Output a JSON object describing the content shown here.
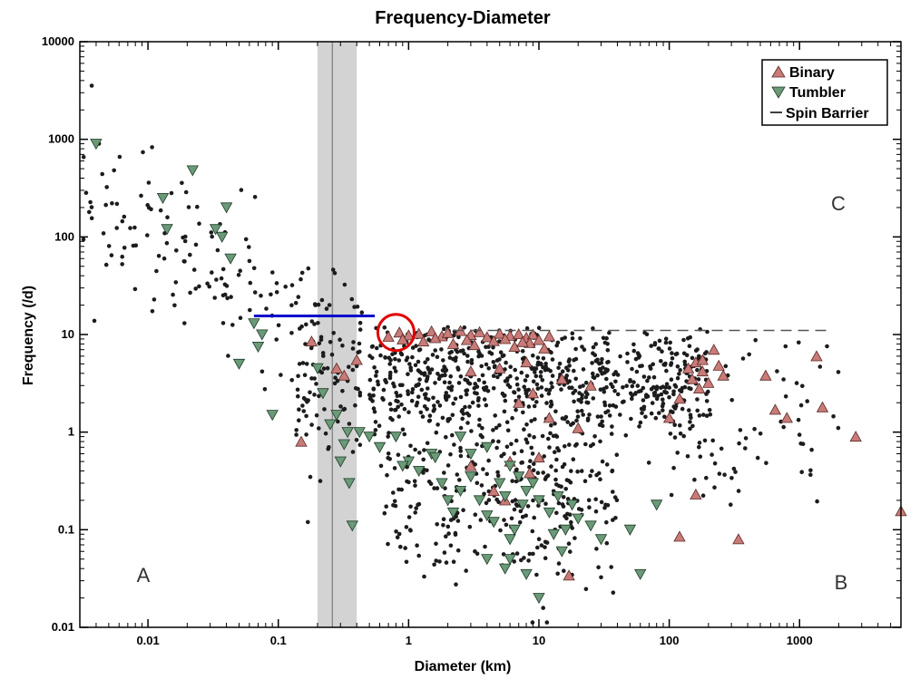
{
  "chart_data": {
    "type": "scatter",
    "title": "Frequency-Diameter",
    "xlabel": "Diameter (km)",
    "ylabel": "Frequency (/d)",
    "xscale": "log",
    "yscale": "log",
    "xlim": [
      0.003,
      6000
    ],
    "ylim": [
      0.01,
      10000
    ],
    "x_ticks": [
      0.01,
      0.1,
      1,
      10,
      100,
      1000
    ],
    "x_tick_labels": [
      "0.01",
      "0.1",
      "1",
      "10",
      "100",
      "1000"
    ],
    "y_ticks": [
      0.01,
      0.1,
      1,
      10,
      100,
      1000,
      10000
    ],
    "y_tick_labels": [
      "0.01",
      "0.1",
      "1",
      "10",
      "100",
      "1000",
      "10000"
    ],
    "legend": {
      "position": "top-right",
      "entries": [
        {
          "label": "Binary",
          "marker": "triangle-up",
          "color": "#c97b78"
        },
        {
          "label": "Tumbler",
          "marker": "triangle-down",
          "color": "#6a9a78"
        },
        {
          "label": "Spin Barrier",
          "marker": "line",
          "color": "#000000"
        }
      ]
    },
    "region_labels": [
      "A",
      "B",
      "C"
    ],
    "spin_barrier_line": {
      "x": [
        2.2,
        1600
      ],
      "y": [
        11,
        11
      ],
      "style": "dashed"
    },
    "highlight_band": {
      "x_range": [
        0.2,
        0.4
      ],
      "center": 0.26
    },
    "blue_line": {
      "x": [
        0.065,
        0.55
      ],
      "y": [
        15.5,
        15.5
      ],
      "color": "#0000cc"
    },
    "red_circle": {
      "x": 0.8,
      "y": 10.5,
      "color": "#e00000"
    },
    "series": [
      {
        "name": "Binary",
        "marker": "triangle-up",
        "color": "#c97b78",
        "points": [
          [
            0.7,
            9.5
          ],
          [
            0.85,
            10.5
          ],
          [
            1.0,
            9.8
          ],
          [
            1.2,
            10.2
          ],
          [
            1.5,
            10.8
          ],
          [
            1.8,
            9.6
          ],
          [
            2.0,
            10.4
          ],
          [
            2.5,
            10.9
          ],
          [
            3.0,
            9.9
          ],
          [
            3.5,
            10.6
          ],
          [
            4.0,
            9.4
          ],
          [
            5.0,
            10.2
          ],
          [
            6.0,
            9.7
          ],
          [
            7.0,
            10.1
          ],
          [
            8.0,
            9.3
          ],
          [
            9.0,
            10.0
          ],
          [
            10.0,
            8.8
          ],
          [
            12.0,
            9.6
          ],
          [
            1.3,
            8.5
          ],
          [
            2.2,
            8.0
          ],
          [
            3.2,
            7.8
          ],
          [
            4.5,
            8.6
          ],
          [
            6.5,
            7.5
          ],
          [
            8.5,
            8.2
          ],
          [
            0.9,
            8.9
          ],
          [
            1.6,
            9.2
          ],
          [
            2.8,
            8.8
          ],
          [
            5.5,
            9.0
          ],
          [
            7.5,
            8.4
          ],
          [
            11.0,
            7.2
          ],
          [
            0.4,
            5.5
          ],
          [
            0.28,
            4.5
          ],
          [
            0.32,
            3.8
          ],
          [
            0.18,
            8.5
          ],
          [
            5.0,
            4.5
          ],
          [
            3.0,
            4.2
          ],
          [
            8.0,
            5.2
          ],
          [
            15.0,
            3.5
          ],
          [
            25.0,
            3.0
          ],
          [
            9.0,
            2.5
          ],
          [
            7.0,
            2.0
          ],
          [
            12.0,
            1.4
          ],
          [
            6.0,
            0.5
          ],
          [
            20.0,
            1.1
          ],
          [
            3.0,
            0.45
          ],
          [
            5.5,
            0.2
          ],
          [
            4.5,
            0.25
          ],
          [
            8.5,
            0.38
          ],
          [
            10.0,
            0.55
          ],
          [
            140.0,
            4.5
          ],
          [
            150.0,
            3.5
          ],
          [
            160.0,
            5.2
          ],
          [
            180.0,
            4.2
          ],
          [
            200.0,
            3.2
          ],
          [
            220.0,
            7.0
          ],
          [
            240.0,
            4.8
          ],
          [
            260.0,
            3.8
          ],
          [
            180.0,
            5.5
          ],
          [
            170.0,
            2.8
          ],
          [
            120.0,
            2.2
          ],
          [
            100.0,
            1.4
          ],
          [
            550.0,
            3.8
          ],
          [
            650.0,
            1.7
          ],
          [
            800.0,
            1.4
          ],
          [
            1350.0,
            6.0
          ],
          [
            1500.0,
            1.8
          ],
          [
            2700.0,
            0.9
          ],
          [
            6000.0,
            0.155
          ],
          [
            340.0,
            0.08
          ],
          [
            160.0,
            0.23
          ],
          [
            17.0,
            0.034
          ],
          [
            120.0,
            0.085
          ],
          [
            0.15,
            0.8
          ]
        ]
      },
      {
        "name": "Tumbler",
        "marker": "triangle-down",
        "color": "#6a9a78",
        "points": [
          [
            0.004,
            900
          ],
          [
            0.013,
            250
          ],
          [
            0.014,
            120
          ],
          [
            0.022,
            480
          ],
          [
            0.033,
            120
          ],
          [
            0.04,
            200
          ],
          [
            0.037,
            100
          ],
          [
            0.043,
            60
          ],
          [
            0.05,
            5.0
          ],
          [
            0.065,
            13
          ],
          [
            0.07,
            7.5
          ],
          [
            0.075,
            10
          ],
          [
            0.09,
            1.5
          ],
          [
            0.2,
            4.5
          ],
          [
            0.22,
            2.5
          ],
          [
            0.25,
            1.2
          ],
          [
            0.28,
            1.5
          ],
          [
            0.3,
            0.5
          ],
          [
            0.32,
            0.75
          ],
          [
            0.35,
            0.3
          ],
          [
            0.37,
            0.11
          ],
          [
            0.34,
            1.0
          ],
          [
            0.42,
            1.0
          ],
          [
            0.5,
            0.9
          ],
          [
            0.6,
            0.7
          ],
          [
            0.8,
            0.9
          ],
          [
            1.0,
            0.5
          ],
          [
            1.2,
            0.4
          ],
          [
            1.5,
            0.6
          ],
          [
            1.8,
            0.3
          ],
          [
            2.0,
            0.2
          ],
          [
            2.2,
            0.15
          ],
          [
            2.5,
            0.25
          ],
          [
            3.0,
            0.35
          ],
          [
            3.5,
            0.2
          ],
          [
            4.0,
            0.14
          ],
          [
            4.5,
            0.12
          ],
          [
            5.0,
            0.3
          ],
          [
            5.5,
            0.22
          ],
          [
            6.0,
            0.08
          ],
          [
            6.5,
            0.1
          ],
          [
            7.0,
            0.35
          ],
          [
            7.5,
            0.18
          ],
          [
            8.0,
            0.25
          ],
          [
            9.0,
            0.3
          ],
          [
            10.0,
            0.2
          ],
          [
            12.0,
            0.15
          ],
          [
            14.0,
            0.22
          ],
          [
            16.0,
            0.1
          ],
          [
            18.0,
            0.18
          ],
          [
            20.0,
            0.13
          ],
          [
            25.0,
            0.11
          ],
          [
            30.0,
            0.08
          ],
          [
            4.0,
            0.05
          ],
          [
            5.5,
            0.04
          ],
          [
            8.0,
            0.035
          ],
          [
            10.0,
            0.02
          ],
          [
            60.0,
            0.035
          ],
          [
            80.0,
            0.18
          ],
          [
            50.0,
            0.1
          ],
          [
            3.0,
            0.6
          ],
          [
            4.0,
            0.7
          ],
          [
            6.0,
            0.45
          ],
          [
            2.5,
            0.9
          ],
          [
            1.6,
            0.55
          ],
          [
            0.9,
            0.45
          ],
          [
            15.0,
            0.06
          ],
          [
            6.0,
            0.05
          ],
          [
            13.0,
            0.09
          ]
        ]
      }
    ]
  }
}
